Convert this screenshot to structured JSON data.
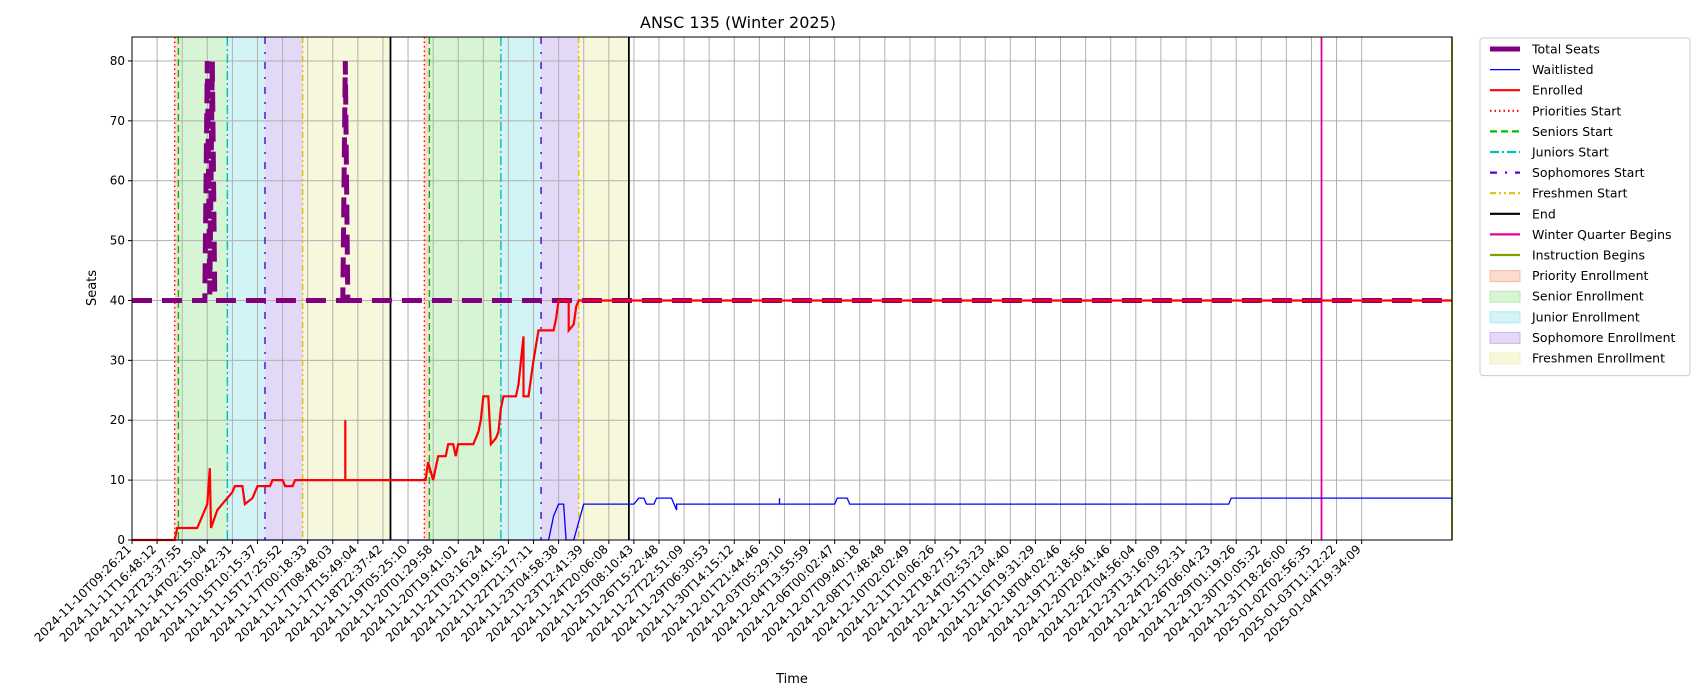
{
  "chart_data": {
    "type": "line",
    "title": "ANSC 135 (Winter 2025)",
    "xlabel": "Time",
    "ylabel": "Seats",
    "ylim": [
      0,
      84
    ],
    "yticks": [
      0,
      10,
      20,
      30,
      40,
      50,
      60,
      70,
      80
    ],
    "grid": true,
    "legend_position": "outside-right",
    "xtick_labels": [
      "2024-11-10T09:26:21",
      "2024-11-11T16:48:12",
      "2024-11-12T23:37:55",
      "2024-11-14T02:15:04",
      "2024-11-15T00:42:31",
      "2024-11-15T10:15:37",
      "2024-11-15T17:25:52",
      "2024-11-17T00:18:33",
      "2024-11-17T08:48:03",
      "2024-11-17T15:49:04",
      "2024-11-18T22:37:42",
      "2024-11-19T05:25:10",
      "2024-11-20T01:29:58",
      "2024-11-20T19:41:01",
      "2024-11-21T03:16:24",
      "2024-11-21T19:41:52",
      "2024-11-22T21:17:11",
      "2024-11-23T04:58:38",
      "2024-11-23T12:41:39",
      "2024-11-24T20:06:08",
      "2024-11-25T08:10:43",
      "2024-11-26T15:22:48",
      "2024-11-27T22:51:09",
      "2024-11-29T06:30:53",
      "2024-11-30T14:15:12",
      "2024-12-01T21:44:46",
      "2024-12-03T05:29:10",
      "2024-12-04T13:55:59",
      "2024-12-06T00:02:47",
      "2024-12-07T09:40:18",
      "2024-12-08T17:48:48",
      "2024-12-10T02:02:49",
      "2024-12-11T10:06:26",
      "2024-12-12T18:27:51",
      "2024-12-14T02:53:23",
      "2024-12-15T11:04:40",
      "2024-12-16T19:31:29",
      "2024-12-18T04:02:46",
      "2024-12-19T12:18:56",
      "2024-12-20T20:41:46",
      "2024-12-22T04:56:04",
      "2024-12-23T13:16:09",
      "2024-12-24T21:52:31",
      "2024-12-26T06:04:23",
      "2024-12-29T01:19:26",
      "2024-12-30T10:05:32",
      "2024-12-31T18:26:00",
      "2025-01-02T02:56:35",
      "2025-01-03T11:12:22",
      "2025-01-04T19:34:09"
    ],
    "x_range_index": [
      0,
      52.6
    ],
    "series": [
      {
        "name": "Total Seats",
        "color": "#800080",
        "style": "dashed-thick",
        "points": [
          [
            0,
            40
          ],
          [
            2.9,
            40
          ],
          [
            3.0,
            80
          ],
          [
            3.1,
            41
          ],
          [
            3.2,
            80
          ],
          [
            3.3,
            40
          ],
          [
            8.4,
            40
          ],
          [
            8.5,
            80
          ],
          [
            8.6,
            40
          ],
          [
            52.6,
            40
          ]
        ]
      },
      {
        "name": "Waitlisted",
        "color": "#0000ff",
        "style": "solid-thin",
        "points": [
          [
            0,
            0
          ],
          [
            16.6,
            0
          ],
          [
            16.8,
            4
          ],
          [
            17.0,
            6
          ],
          [
            17.2,
            6
          ],
          [
            17.3,
            0
          ],
          [
            17.6,
            0
          ],
          [
            17.8,
            3
          ],
          [
            18.0,
            6
          ],
          [
            20.0,
            6
          ],
          [
            20.2,
            7
          ],
          [
            20.4,
            7
          ],
          [
            20.5,
            6
          ],
          [
            20.8,
            6
          ],
          [
            20.9,
            7
          ],
          [
            21.5,
            7
          ],
          [
            21.6,
            6
          ],
          [
            21.7,
            5
          ],
          [
            21.7,
            6
          ],
          [
            25.8,
            6
          ],
          [
            25.8,
            7
          ],
          [
            25.8,
            6
          ],
          [
            28.0,
            6
          ],
          [
            28.1,
            7
          ],
          [
            28.5,
            7
          ],
          [
            28.6,
            6
          ],
          [
            43.7,
            6
          ],
          [
            43.8,
            7
          ],
          [
            52.6,
            7
          ]
        ]
      },
      {
        "name": "Enrolled",
        "color": "#ff0000",
        "style": "solid",
        "points": [
          [
            0,
            0
          ],
          [
            1.7,
            0
          ],
          [
            1.8,
            2
          ],
          [
            2.6,
            2
          ],
          [
            2.8,
            4
          ],
          [
            3.0,
            6
          ],
          [
            3.1,
            12
          ],
          [
            3.15,
            2
          ],
          [
            3.4,
            5
          ],
          [
            3.6,
            6
          ],
          [
            3.8,
            7
          ],
          [
            4.0,
            8
          ],
          [
            4.1,
            9
          ],
          [
            4.4,
            9
          ],
          [
            4.5,
            6
          ],
          [
            4.8,
            7
          ],
          [
            5.0,
            9
          ],
          [
            5.5,
            9
          ],
          [
            5.6,
            10
          ],
          [
            6.0,
            10
          ],
          [
            6.1,
            9
          ],
          [
            6.4,
            9
          ],
          [
            6.5,
            10
          ],
          [
            8.5,
            10
          ],
          [
            8.5,
            20
          ],
          [
            8.5,
            10
          ],
          [
            11.7,
            10
          ],
          [
            11.8,
            13
          ],
          [
            12.0,
            10
          ],
          [
            12.2,
            14
          ],
          [
            12.5,
            14
          ],
          [
            12.6,
            16
          ],
          [
            12.8,
            16
          ],
          [
            12.9,
            14
          ],
          [
            13.0,
            16
          ],
          [
            13.6,
            16
          ],
          [
            13.8,
            18
          ],
          [
            13.9,
            20
          ],
          [
            14.0,
            24
          ],
          [
            14.2,
            24
          ],
          [
            14.3,
            16
          ],
          [
            14.5,
            17
          ],
          [
            14.6,
            18
          ],
          [
            14.7,
            22
          ],
          [
            14.8,
            24
          ],
          [
            15.3,
            24
          ],
          [
            15.4,
            26
          ],
          [
            15.5,
            30
          ],
          [
            15.6,
            34
          ],
          [
            15.6,
            24
          ],
          [
            15.8,
            24
          ],
          [
            15.9,
            27
          ],
          [
            16.0,
            30
          ],
          [
            16.2,
            35
          ],
          [
            16.8,
            35
          ],
          [
            16.9,
            37
          ],
          [
            17.0,
            40
          ],
          [
            17.4,
            40
          ],
          [
            17.4,
            35
          ],
          [
            17.6,
            36
          ],
          [
            17.7,
            39
          ],
          [
            17.8,
            40
          ],
          [
            52.6,
            40
          ]
        ]
      }
    ],
    "vlines": [
      {
        "name": "Priorities Start",
        "color": "#ff0000",
        "style": "dotted",
        "x": [
          1.7,
          11.65
        ]
      },
      {
        "name": "Seniors Start",
        "color": "#00bb00",
        "style": "dashed",
        "x": [
          1.85,
          11.85
        ]
      },
      {
        "name": "Juniors Start",
        "color": "#00bfbf",
        "style": "dashdot",
        "x": [
          3.8,
          14.7
        ]
      },
      {
        "name": "Sophomores Start",
        "color": "#5500dd",
        "style": "loose-dashdot",
        "x": [
          5.3,
          16.3
        ]
      },
      {
        "name": "Freshmen Start",
        "color": "#e0c000",
        "style": "dashdot-dot",
        "x": [
          6.8,
          17.8
        ]
      },
      {
        "name": "End",
        "color": "#000000",
        "style": "solid",
        "x": [
          10.3,
          19.8
        ]
      },
      {
        "name": "Winter Quarter Begins",
        "color": "#e000a0",
        "style": "solid",
        "x": [
          47.4
        ]
      },
      {
        "name": "Instruction Begins",
        "color": "#80a000",
        "style": "solid",
        "x": [
          52.6
        ]
      }
    ],
    "spans": [
      {
        "name": "Priority Enrollment",
        "color": "#f4b090",
        "ranges": [
          [
            1.7,
            1.85
          ],
          [
            11.65,
            11.85
          ]
        ]
      },
      {
        "name": "Senior Enrollment",
        "color": "#a6e6a0",
        "ranges": [
          [
            1.85,
            3.8
          ],
          [
            11.85,
            14.7
          ]
        ]
      },
      {
        "name": "Junior Enrollment",
        "color": "#9ee6ec",
        "ranges": [
          [
            3.8,
            5.3
          ],
          [
            14.7,
            16.3
          ]
        ]
      },
      {
        "name": "Sophomore Enrollment",
        "color": "#c2a8ec",
        "ranges": [
          [
            5.3,
            6.8
          ],
          [
            16.3,
            17.8
          ]
        ]
      },
      {
        "name": "Freshmen Enrollment",
        "color": "#eeeeb0",
        "ranges": [
          [
            6.8,
            10.3
          ],
          [
            17.8,
            19.8
          ]
        ]
      }
    ],
    "legend": [
      {
        "label": "Total Seats",
        "kind": "line",
        "color": "#800080",
        "style": "thick"
      },
      {
        "label": "Waitlisted",
        "kind": "line",
        "color": "#0000ff",
        "style": "solid-thin"
      },
      {
        "label": "Enrolled",
        "kind": "line",
        "color": "#ff0000",
        "style": "solid"
      },
      {
        "label": "Priorities Start",
        "kind": "line",
        "color": "#ff0000",
        "style": "dotted"
      },
      {
        "label": "Seniors Start",
        "kind": "line",
        "color": "#00bb00",
        "style": "dashed"
      },
      {
        "label": "Juniors Start",
        "kind": "line",
        "color": "#00bfbf",
        "style": "dashdot"
      },
      {
        "label": "Sophomores Start",
        "kind": "line",
        "color": "#5500dd",
        "style": "loose-dashdot"
      },
      {
        "label": "Freshmen Start",
        "kind": "line",
        "color": "#e0c000",
        "style": "dashdot-dot"
      },
      {
        "label": "End",
        "kind": "line",
        "color": "#000000",
        "style": "solid"
      },
      {
        "label": "Winter Quarter Begins",
        "kind": "line",
        "color": "#e000a0",
        "style": "solid"
      },
      {
        "label": "Instruction Begins",
        "kind": "line",
        "color": "#80a000",
        "style": "solid"
      },
      {
        "label": "Priority Enrollment",
        "kind": "patch",
        "color": "#f4b090"
      },
      {
        "label": "Senior Enrollment",
        "kind": "patch",
        "color": "#a6e6a0"
      },
      {
        "label": "Junior Enrollment",
        "kind": "patch",
        "color": "#9ee6ec"
      },
      {
        "label": "Sophomore Enrollment",
        "kind": "patch",
        "color": "#c2a8ec"
      },
      {
        "label": "Freshmen Enrollment",
        "kind": "patch",
        "color": "#eeeeb0"
      }
    ]
  }
}
